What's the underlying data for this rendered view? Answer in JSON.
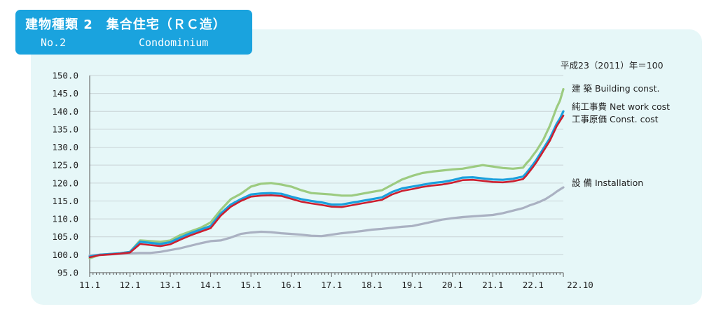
{
  "header": {
    "title_jp": "建物種類 2　集合住宅（ＲＣ造）",
    "title_no": "No.2",
    "title_en": "Condominium"
  },
  "chart_data": {
    "type": "line",
    "title": "",
    "xlabel": "",
    "ylabel": "",
    "base_note": "平成23（2011）年＝100",
    "ylim": [
      95.0,
      150.0
    ],
    "y_ticks": [
      "150.0",
      "145.0",
      "140.0",
      "135.0",
      "130.0",
      "125.0",
      "120.0",
      "115.0",
      "110.0",
      "105.0",
      "100.0",
      "95.0"
    ],
    "x_tick_labels": [
      "11.1",
      "12.1",
      "13.1",
      "14.1",
      "15.1",
      "16.1",
      "17.1",
      "18.1",
      "19.1",
      "20.1",
      "21.1",
      "22.1",
      "22.10"
    ],
    "grid": true,
    "x_months_from_2011_01": [
      0,
      3,
      6,
      9,
      12,
      15,
      18,
      21,
      24,
      27,
      30,
      33,
      36,
      39,
      42,
      45,
      48,
      51,
      54,
      57,
      60,
      63,
      66,
      69,
      72,
      75,
      78,
      81,
      84,
      87,
      90,
      93,
      96,
      99,
      102,
      105,
      108,
      111,
      114,
      117,
      120,
      123,
      126,
      129,
      130,
      131,
      132,
      133,
      134,
      135,
      136,
      137,
      138,
      139,
      140,
      141
    ],
    "series": [
      {
        "name": "建 築  Building const.",
        "color": "#9ccb80",
        "width": 3.2,
        "values": [
          99.0,
          100.0,
          100.2,
          100.4,
          100.8,
          104.0,
          103.8,
          103.6,
          104.0,
          105.5,
          106.5,
          107.5,
          109.0,
          112.5,
          115.5,
          117.0,
          119.0,
          119.8,
          120.0,
          119.6,
          119.0,
          118.0,
          117.2,
          117.0,
          116.8,
          116.5,
          116.5,
          117.0,
          117.5,
          118.0,
          119.5,
          121.0,
          122.0,
          122.8,
          123.2,
          123.5,
          123.8,
          124.0,
          124.5,
          125.0,
          124.6,
          124.2,
          124.0,
          124.3,
          125.5,
          126.5,
          127.8,
          129.0,
          130.5,
          132.0,
          134.0,
          136.0,
          138.5,
          141.0,
          143.0,
          146.2
        ]
      },
      {
        "name": "純工事費  Net work cost",
        "color": "#1aa0dd",
        "width": 3.2,
        "values": [
          99.5,
          100.0,
          100.2,
          100.4,
          100.8,
          103.6,
          103.3,
          103.0,
          103.5,
          104.8,
          106.0,
          107.0,
          108.0,
          111.5,
          114.0,
          115.5,
          116.8,
          117.1,
          117.2,
          117.0,
          116.2,
          115.5,
          115.0,
          114.6,
          114.0,
          114.0,
          114.5,
          115.0,
          115.5,
          116.0,
          117.5,
          118.5,
          119.0,
          119.5,
          120.0,
          120.3,
          120.8,
          121.5,
          121.6,
          121.3,
          121.0,
          120.9,
          121.2,
          121.8,
          122.8,
          124.0,
          125.2,
          126.5,
          128.0,
          129.5,
          131.0,
          132.5,
          134.5,
          136.5,
          138.0,
          140.0
        ]
      },
      {
        "name": "工事原価  Const. cost",
        "color": "#cc1f2f",
        "width": 2.6,
        "values": [
          99.3,
          99.9,
          100.1,
          100.3,
          100.6,
          103.0,
          102.7,
          102.4,
          102.9,
          104.2,
          105.4,
          106.4,
          107.4,
          110.9,
          113.4,
          115.0,
          116.2,
          116.5,
          116.6,
          116.4,
          115.6,
          114.8,
          114.3,
          113.9,
          113.4,
          113.3,
          113.8,
          114.3,
          114.8,
          115.3,
          116.8,
          117.8,
          118.3,
          118.9,
          119.3,
          119.6,
          120.1,
          120.8,
          120.9,
          120.6,
          120.3,
          120.2,
          120.5,
          121.1,
          122.1,
          123.3,
          124.5,
          125.8,
          127.3,
          128.8,
          130.3,
          131.8,
          133.8,
          135.8,
          137.3,
          138.8
        ]
      },
      {
        "name": "設 備  Installation",
        "color": "#aab1c2",
        "width": 3.2,
        "values": [
          99.8,
          100.0,
          100.1,
          100.2,
          100.4,
          100.5,
          100.5,
          100.8,
          101.3,
          101.8,
          102.5,
          103.2,
          103.8,
          104.0,
          104.8,
          105.8,
          106.2,
          106.4,
          106.3,
          106.0,
          105.8,
          105.6,
          105.3,
          105.2,
          105.6,
          106.0,
          106.3,
          106.6,
          107.0,
          107.2,
          107.5,
          107.8,
          108.0,
          108.6,
          109.2,
          109.8,
          110.2,
          110.5,
          110.7,
          110.9,
          111.1,
          111.6,
          112.3,
          113.0,
          113.4,
          113.8,
          114.1,
          114.4,
          114.8,
          115.2,
          115.7,
          116.3,
          116.9,
          117.6,
          118.2,
          118.8
        ]
      }
    ]
  }
}
